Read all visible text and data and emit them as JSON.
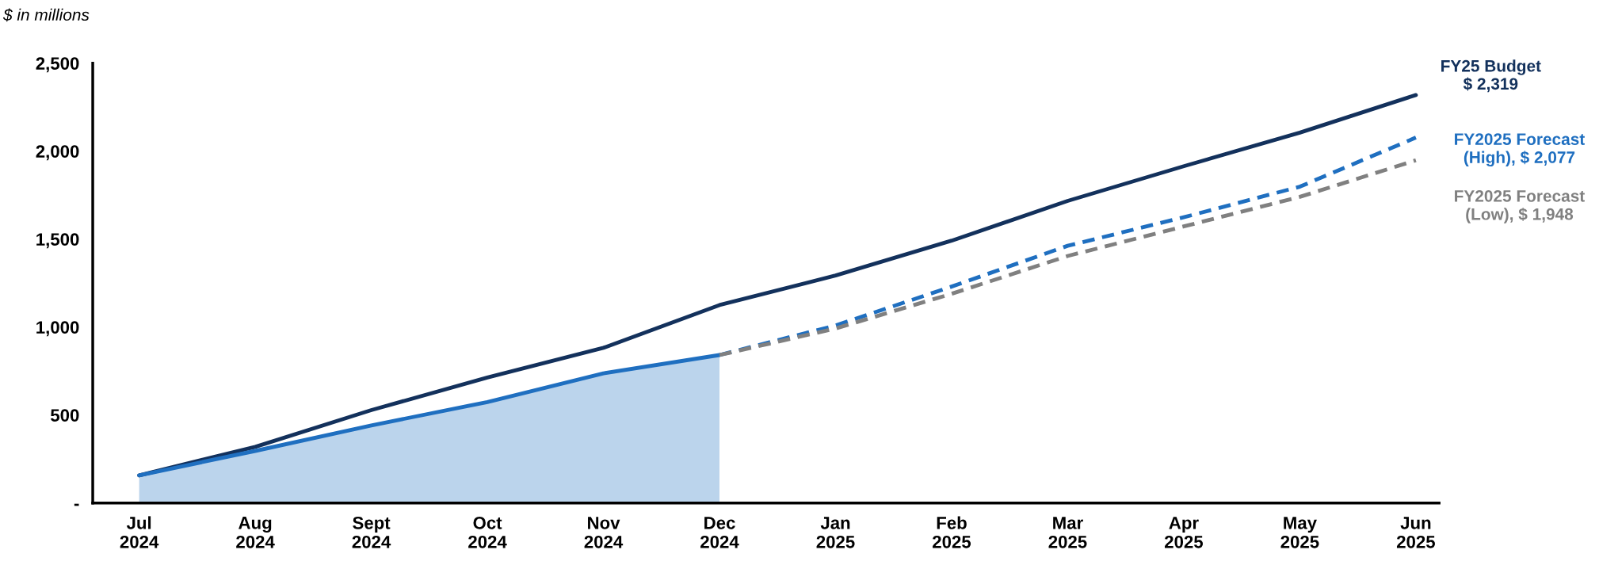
{
  "chart_data": {
    "type": "line",
    "ylabel": "$ in millions",
    "categories": [
      "Jul\n2024",
      "Aug\n2024",
      "Sept\n2024",
      "Oct\n2024",
      "Nov\n2024",
      "Dec\n2024",
      "Jan\n2025",
      "Feb\n2025",
      "Mar\n2025",
      "Apr\n2025",
      "May\n2025",
      "Jun\n2025"
    ],
    "series": [
      {
        "name": "FY25 Budget\n$ 2,319",
        "color": "#13315c",
        "line_style": "solid",
        "values": [
          157,
          319,
          528,
          713,
          882,
          1125,
          1293,
          1491,
          1717,
          1914,
          2105,
          2319
        ]
      },
      {
        "type": "area",
        "color": "#1f6fc0",
        "line_style": "solid",
        "values": [
          157,
          296,
          441,
          574,
          737,
          841,
          null,
          null,
          null,
          null,
          null,
          null
        ]
      },
      {
        "name": "FY2025 Forecast\n(High), $ 2,077",
        "color": "#1f6fc0",
        "line_style": "dashed",
        "values": [
          null,
          null,
          null,
          null,
          null,
          841,
          1009,
          1230,
          1462,
          1624,
          1798,
          2077
        ]
      },
      {
        "name": "FY2025 Forecast\n(Low), $ 1,948",
        "color": "#808080",
        "line_style": "dashed",
        "values": [
          null,
          null,
          null,
          null,
          null,
          841,
          992,
          1189,
          1404,
          1572,
          1740,
          1948
        ]
      }
    ],
    "ylim": [
      0,
      2500
    ],
    "yticks": [
      {
        "value": 0,
        "label": "-"
      },
      {
        "value": 500,
        "label": "500"
      },
      {
        "value": 1000,
        "label": "1,000"
      },
      {
        "value": 1500,
        "label": "1,500"
      },
      {
        "value": 2000,
        "label": "2,000"
      },
      {
        "value": 2500,
        "label": "2,500"
      }
    ],
    "grid": false,
    "legend": false,
    "marker": "none"
  }
}
